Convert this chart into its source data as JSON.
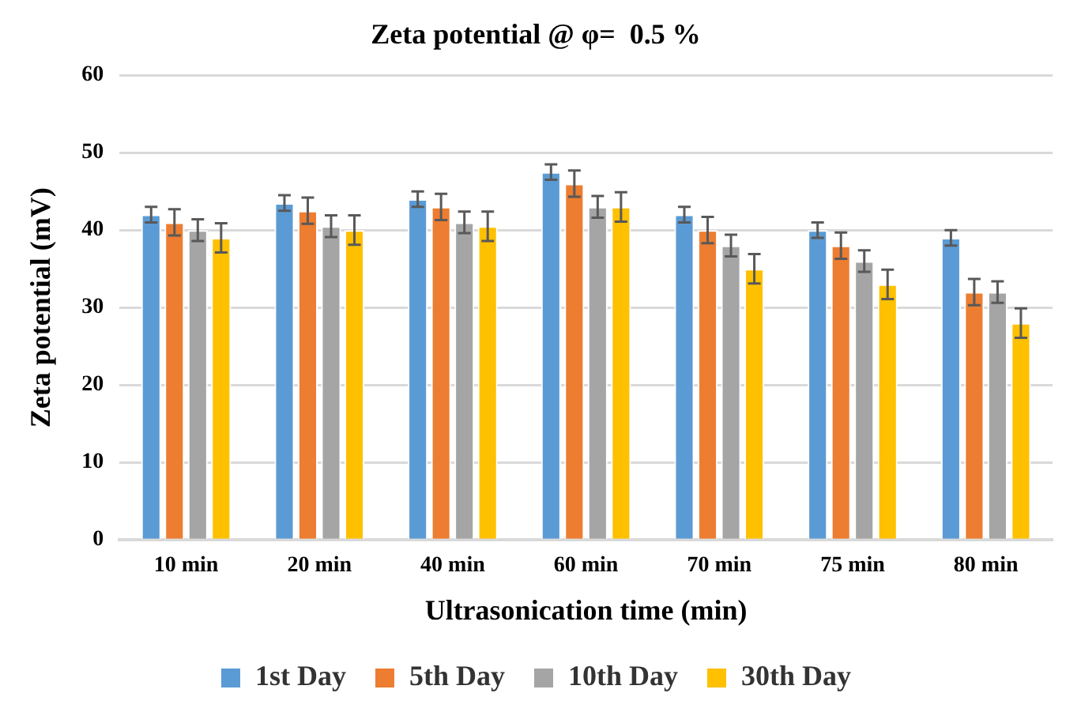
{
  "chart_data": {
    "type": "bar",
    "title": "Zeta potential @ φ=  0.5 %",
    "xlabel": "Ultrasonication time (min)",
    "ylabel": "Zeta potential (mV)",
    "categories": [
      "10 min",
      "20 min",
      "40 min",
      "60 min",
      "70 min",
      "75 min",
      "80 min"
    ],
    "series": [
      {
        "name": "1st Day",
        "color": "#5b9bd5",
        "values": [
          42,
          43.5,
          44,
          47.5,
          42,
          40,
          39
        ],
        "errors": [
          1,
          1,
          1,
          1,
          1,
          1,
          1
        ]
      },
      {
        "name": "5th Day",
        "color": "#ed7d31",
        "values": [
          41,
          42.5,
          43,
          46,
          40,
          38,
          32
        ],
        "errors": [
          1.7,
          1.7,
          1.7,
          1.7,
          1.7,
          1.7,
          1.7
        ]
      },
      {
        "name": "10th Day",
        "color": "#a5a5a5",
        "values": [
          40,
          40.5,
          41,
          43,
          38,
          36,
          32
        ],
        "errors": [
          1.4,
          1.4,
          1.4,
          1.4,
          1.4,
          1.4,
          1.4
        ]
      },
      {
        "name": "30th Day",
        "color": "#ffc000",
        "values": [
          39,
          40,
          40.5,
          43,
          35,
          33,
          28
        ],
        "errors": [
          1.9,
          1.9,
          1.9,
          1.9,
          1.9,
          1.9,
          1.9
        ]
      }
    ],
    "ylim": [
      0,
      60
    ],
    "yticks": [
      0,
      10,
      20,
      30,
      40,
      50,
      60
    ],
    "grid": "y",
    "legend": "bottom"
  }
}
